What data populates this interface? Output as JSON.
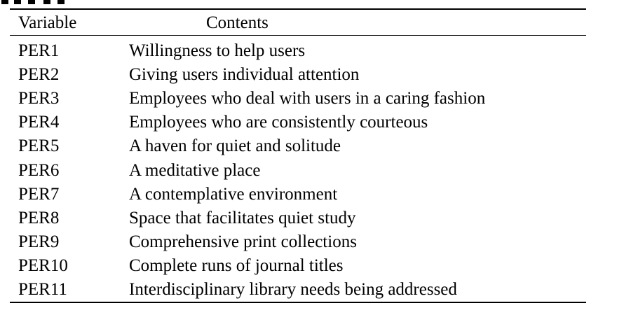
{
  "table": {
    "headers": {
      "variable": "Variable",
      "contents": "Contents"
    },
    "rows": [
      {
        "variable": "PER1",
        "contents": "Willingness to help users"
      },
      {
        "variable": "PER2",
        "contents": "Giving users individual attention"
      },
      {
        "variable": "PER3",
        "contents": "Employees who deal with users in a caring fashion"
      },
      {
        "variable": "PER4",
        "contents": "Employees who are consistently courteous"
      },
      {
        "variable": "PER5",
        "contents": "A haven for quiet and solitude"
      },
      {
        "variable": "PER6",
        "contents": "A meditative place"
      },
      {
        "variable": "PER7",
        "contents": "A contemplative environment"
      },
      {
        "variable": "PER8",
        "contents": "Space that facilitates quiet study"
      },
      {
        "variable": "PER9",
        "contents": "Comprehensive print collections"
      },
      {
        "variable": "PER10",
        "contents": "Complete runs of journal titles"
      },
      {
        "variable": "PER11",
        "contents": "Interdisciplinary library needs being addressed"
      }
    ]
  }
}
